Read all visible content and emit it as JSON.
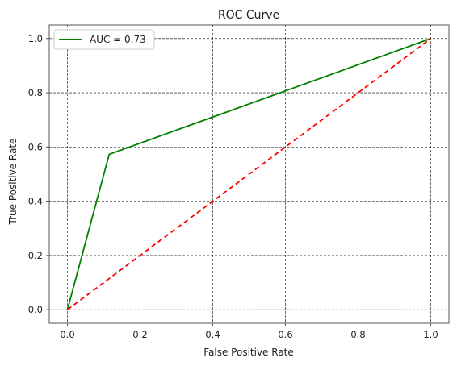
{
  "chart_data": {
    "type": "line",
    "title": "ROC Curve",
    "xlabel": "False Positive Rate",
    "ylabel": "True Positive Rate",
    "xlim": [
      -0.05,
      1.05
    ],
    "ylim": [
      -0.05,
      1.05
    ],
    "xticks": [
      "0.0",
      "0.2",
      "0.4",
      "0.6",
      "0.8",
      "1.0"
    ],
    "yticks": [
      "0.0",
      "0.2",
      "0.4",
      "0.6",
      "0.8",
      "1.0"
    ],
    "grid": true,
    "legend_position": "top-left",
    "series": [
      {
        "name": "AUC = 0.73",
        "color": "#008000",
        "style": "solid",
        "x": [
          0.0,
          0.115,
          1.0
        ],
        "y": [
          0.0,
          0.573,
          1.0
        ]
      },
      {
        "color": "#ff0000",
        "style": "dashed",
        "x": [
          0.0,
          1.0
        ],
        "y": [
          0.0,
          1.0
        ]
      }
    ]
  }
}
